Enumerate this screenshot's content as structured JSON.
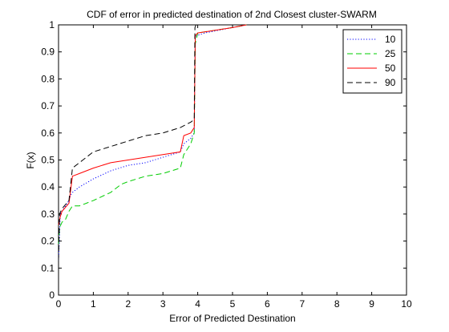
{
  "chart_data": {
    "type": "line",
    "title": "CDF of error in predicted destination of 2nd Closest cluster-SWARM",
    "xlabel": "Error of Predicted Destination",
    "ylabel": "F(x)",
    "xlim": [
      0,
      10
    ],
    "ylim": [
      0,
      1
    ],
    "xticks": [
      "0",
      "1",
      "2",
      "3",
      "4",
      "5",
      "6",
      "7",
      "8",
      "9",
      "10"
    ],
    "yticks": [
      "0",
      "0.1",
      "0.2",
      "0.3",
      "0.4",
      "0.5",
      "0.6",
      "0.7",
      "0.8",
      "0.9",
      "1"
    ],
    "grid": false,
    "legend_position": "top-right",
    "series": [
      {
        "name": "10",
        "color": "#0000ff",
        "style": "dotted",
        "points": [
          [
            0,
            0.13
          ],
          [
            0.03,
            0.22
          ],
          [
            0.05,
            0.3
          ],
          [
            0.1,
            0.31
          ],
          [
            0.2,
            0.33
          ],
          [
            0.3,
            0.35
          ],
          [
            0.35,
            0.37
          ],
          [
            0.4,
            0.38
          ],
          [
            0.6,
            0.4
          ],
          [
            1.0,
            0.43
          ],
          [
            1.5,
            0.46
          ],
          [
            2.0,
            0.48
          ],
          [
            2.5,
            0.49
          ],
          [
            3.0,
            0.51
          ],
          [
            3.5,
            0.53
          ],
          [
            3.6,
            0.56
          ],
          [
            3.8,
            0.58
          ],
          [
            3.9,
            0.6
          ],
          [
            3.93,
            0.95
          ],
          [
            3.97,
            0.96
          ],
          [
            4.2,
            0.97
          ],
          [
            5.0,
            0.99
          ],
          [
            5.4,
            1.0
          ]
        ]
      },
      {
        "name": "25",
        "color": "#00cc00",
        "style": "dashed",
        "points": [
          [
            0,
            0.19
          ],
          [
            0.03,
            0.25
          ],
          [
            0.1,
            0.27
          ],
          [
            0.2,
            0.28
          ],
          [
            0.3,
            0.31
          ],
          [
            0.4,
            0.33
          ],
          [
            0.6,
            0.33
          ],
          [
            1.0,
            0.35
          ],
          [
            1.5,
            0.38
          ],
          [
            1.8,
            0.41
          ],
          [
            2.0,
            0.42
          ],
          [
            2.5,
            0.44
          ],
          [
            3.0,
            0.45
          ],
          [
            3.5,
            0.47
          ],
          [
            3.6,
            0.52
          ],
          [
            3.8,
            0.56
          ],
          [
            3.9,
            0.6
          ],
          [
            3.93,
            0.93
          ],
          [
            4.0,
            0.97
          ],
          [
            4.5,
            0.98
          ],
          [
            5.0,
            0.99
          ],
          [
            5.4,
            1.0
          ]
        ]
      },
      {
        "name": "50",
        "color": "#ff0000",
        "style": "solid",
        "points": [
          [
            0,
            0.26
          ],
          [
            0.05,
            0.29
          ],
          [
            0.1,
            0.31
          ],
          [
            0.3,
            0.34
          ],
          [
            0.4,
            0.44
          ],
          [
            0.6,
            0.45
          ],
          [
            1.0,
            0.47
          ],
          [
            1.5,
            0.49
          ],
          [
            2.0,
            0.5
          ],
          [
            2.5,
            0.51
          ],
          [
            3.0,
            0.52
          ],
          [
            3.5,
            0.53
          ],
          [
            3.6,
            0.59
          ],
          [
            3.8,
            0.6
          ],
          [
            3.9,
            0.62
          ],
          [
            3.93,
            0.96
          ],
          [
            4.0,
            0.97
          ],
          [
            5.0,
            0.99
          ],
          [
            5.4,
            1.0
          ]
        ]
      },
      {
        "name": "90",
        "color": "#000000",
        "style": "dashed",
        "points": [
          [
            0,
            0.13
          ],
          [
            0.03,
            0.3
          ],
          [
            0.1,
            0.32
          ],
          [
            0.3,
            0.35
          ],
          [
            0.4,
            0.47
          ],
          [
            0.7,
            0.5
          ],
          [
            1.0,
            0.53
          ],
          [
            1.5,
            0.55
          ],
          [
            2.0,
            0.57
          ],
          [
            2.5,
            0.59
          ],
          [
            3.0,
            0.6
          ],
          [
            3.5,
            0.62
          ],
          [
            3.8,
            0.64
          ],
          [
            3.9,
            0.65
          ],
          [
            3.92,
            0.99
          ],
          [
            3.95,
            1.0
          ]
        ]
      }
    ]
  }
}
